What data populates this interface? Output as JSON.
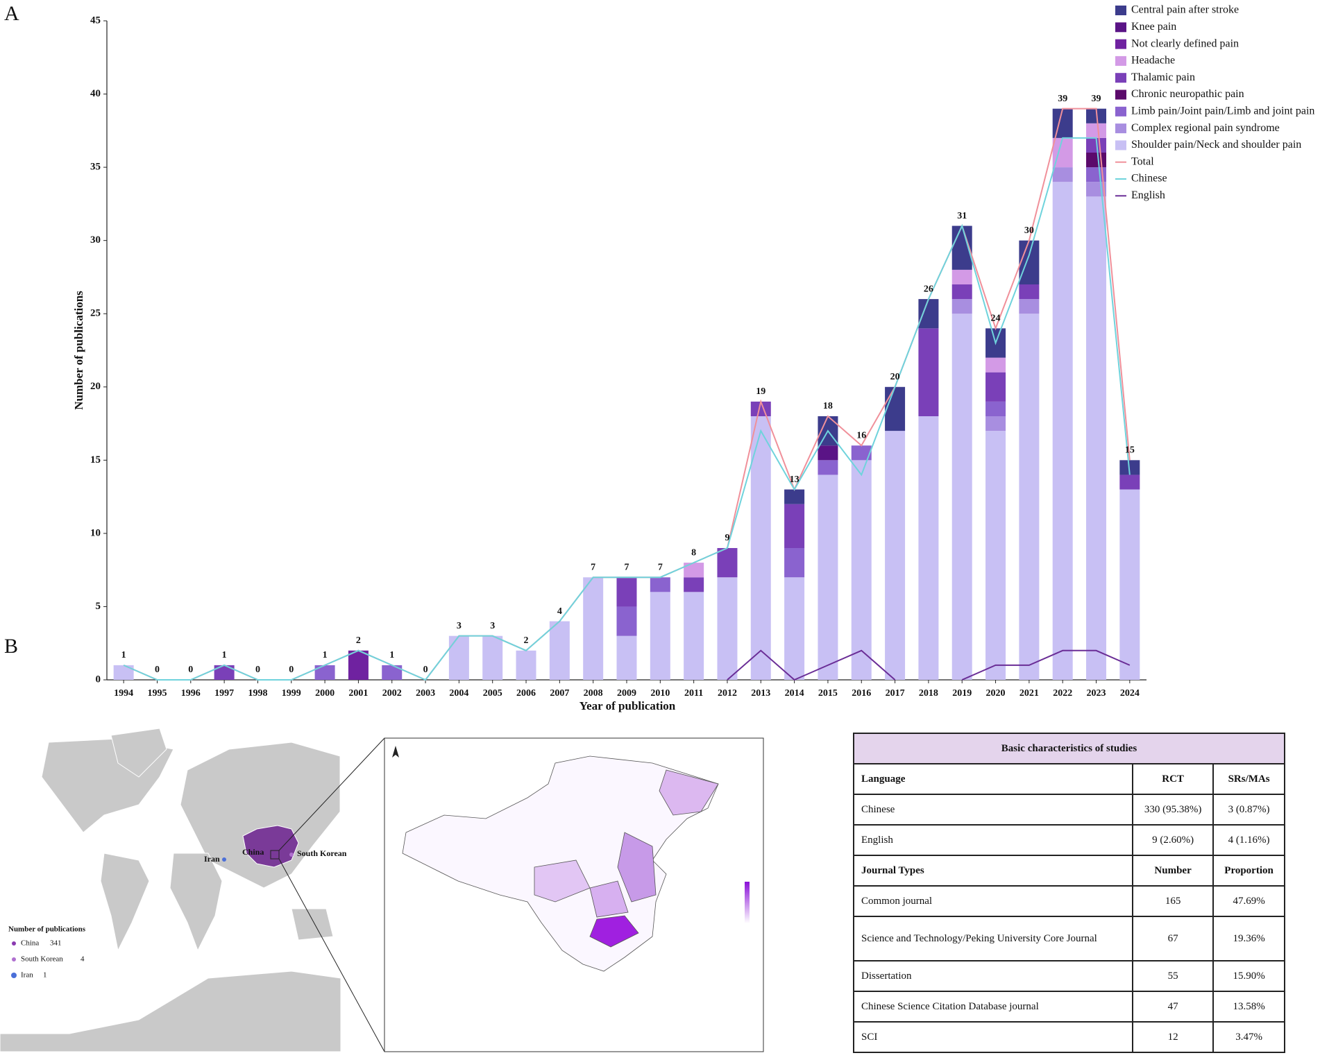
{
  "panel_labels": [
    "A",
    "B"
  ],
  "chart_data": {
    "type": "bar",
    "stacked": true,
    "xlabel": "Year of publication",
    "ylabel": "Number of publications",
    "categories": [
      "1994",
      "1995",
      "1996",
      "1997",
      "1998",
      "1999",
      "2000",
      "2001",
      "2002",
      "2003",
      "2004",
      "2005",
      "2006",
      "2007",
      "2008",
      "2009",
      "2010",
      "2011",
      "2012",
      "2013",
      "2014",
      "2015",
      "2016",
      "2017",
      "2018",
      "2019",
      "2020",
      "2021",
      "2022",
      "2023",
      "2024"
    ],
    "ylim": [
      0,
      45
    ],
    "yticks": [
      0,
      5,
      10,
      15,
      20,
      25,
      30,
      35,
      40,
      45
    ],
    "grid": false,
    "legend": "top-right",
    "series": [
      {
        "name": "Central pain after stroke",
        "color": "#3c3c8c",
        "values": [
          0,
          0,
          0,
          0,
          0,
          0,
          0,
          0,
          0,
          0,
          0,
          0,
          0,
          0,
          0,
          0,
          0,
          0,
          0,
          0,
          1,
          2,
          0,
          3,
          2,
          3,
          2,
          3,
          2,
          1,
          1
        ]
      },
      {
        "name": "Knee pain",
        "color": "#5a1486",
        "values": [
          0,
          0,
          0,
          0,
          0,
          0,
          0,
          0,
          0,
          0,
          0,
          0,
          0,
          0,
          0,
          0,
          0,
          0,
          0,
          0,
          0,
          1,
          0,
          0,
          0,
          0,
          0,
          0,
          0,
          0,
          0
        ]
      },
      {
        "name": "Not clearly defined pain",
        "color": "#6f22a0",
        "values": [
          0,
          0,
          0,
          0,
          0,
          0,
          0,
          2,
          0,
          0,
          0,
          0,
          0,
          0,
          0,
          0,
          0,
          0,
          0,
          0,
          0,
          0,
          0,
          0,
          0,
          0,
          0,
          0,
          0,
          0,
          0
        ]
      },
      {
        "name": "Headache",
        "color": "#d39ae6",
        "values": [
          0,
          0,
          0,
          0,
          0,
          0,
          0,
          0,
          0,
          0,
          0,
          0,
          0,
          0,
          0,
          0,
          0,
          1,
          0,
          0,
          0,
          0,
          0,
          0,
          0,
          1,
          1,
          0,
          2,
          1,
          0
        ]
      },
      {
        "name": "Thalamic pain",
        "color": "#7a40b8",
        "values": [
          0,
          0,
          0,
          1,
          0,
          0,
          0,
          0,
          0,
          0,
          0,
          0,
          0,
          0,
          0,
          2,
          0,
          1,
          2,
          1,
          3,
          0,
          0,
          0,
          6,
          1,
          2,
          1,
          0,
          1,
          1
        ]
      },
      {
        "name": "Chronic neuropathic pain",
        "color": "#5b0a6b",
        "values": [
          0,
          0,
          0,
          0,
          0,
          0,
          0,
          0,
          0,
          0,
          0,
          0,
          0,
          0,
          0,
          0,
          0,
          0,
          0,
          0,
          0,
          0,
          0,
          0,
          0,
          0,
          0,
          0,
          0,
          1,
          0
        ]
      },
      {
        "name": "Limb pain/Joint pain/Limb and joint pain",
        "color": "#8a63cf",
        "values": [
          0,
          0,
          0,
          0,
          0,
          0,
          1,
          0,
          1,
          0,
          0,
          0,
          0,
          0,
          0,
          2,
          1,
          0,
          0,
          0,
          2,
          1,
          1,
          0,
          0,
          0,
          1,
          0,
          0,
          1,
          0
        ]
      },
      {
        "name": "Complex regional pain syndrome",
        "color": "#a88ee0",
        "values": [
          0,
          0,
          0,
          0,
          0,
          0,
          0,
          0,
          0,
          0,
          0,
          0,
          0,
          0,
          0,
          0,
          0,
          0,
          0,
          0,
          0,
          0,
          0,
          0,
          0,
          1,
          1,
          1,
          1,
          1,
          0
        ]
      },
      {
        "name": "Shoulder pain/Neck and shoulder pain",
        "color": "#c8c0f4",
        "values": [
          1,
          0,
          0,
          0,
          0,
          0,
          0,
          0,
          0,
          0,
          3,
          3,
          2,
          4,
          7,
          3,
          6,
          6,
          7,
          18,
          7,
          14,
          15,
          17,
          18,
          25,
          17,
          25,
          34,
          33,
          13
        ]
      },
      {
        "name": "Total",
        "type": "line",
        "data_labels": true,
        "color": "#f0909a",
        "values": [
          1,
          0,
          0,
          1,
          0,
          0,
          1,
          2,
          1,
          0,
          3,
          3,
          2,
          4,
          7,
          7,
          7,
          8,
          9,
          19,
          13,
          18,
          16,
          20,
          26,
          31,
          24,
          30,
          39,
          39,
          15
        ]
      },
      {
        "name": "Chinese",
        "type": "line",
        "color": "#6fd3dc",
        "values": [
          1,
          0,
          0,
          1,
          0,
          0,
          1,
          2,
          1,
          0,
          3,
          3,
          2,
          4,
          7,
          7,
          7,
          8,
          9,
          17,
          13,
          17,
          14,
          20,
          26,
          31,
          23,
          29,
          37,
          37,
          14
        ]
      },
      {
        "name": "English",
        "type": "line",
        "color": "#6a2d96",
        "values": [
          null,
          null,
          null,
          null,
          null,
          null,
          null,
          null,
          null,
          null,
          null,
          null,
          null,
          null,
          null,
          null,
          null,
          null,
          0,
          2,
          0,
          1,
          2,
          0,
          null,
          0,
          1,
          1,
          2,
          2,
          1
        ]
      }
    ]
  },
  "map": {
    "labels": [
      "Iran",
      "China",
      "South Korean"
    ],
    "legend_title": "Number of publications",
    "legend": [
      {
        "name": "China",
        "value": 341
      },
      {
        "name": "South Korean",
        "value": 4
      },
      {
        "name": "Iran",
        "value": 1
      }
    ]
  },
  "table": {
    "title": "Basic characteristics of studies",
    "rows": [
      [
        "Language",
        "RCT",
        "SRs/MAs"
      ],
      [
        "Chinese",
        "330 (95.38%)",
        "3 (0.87%)"
      ],
      [
        "English",
        "9 (2.60%)",
        "4 (1.16%)"
      ],
      [
        "Journal Types",
        "Number",
        "Proportion"
      ],
      [
        "Common journal",
        "165",
        "47.69%"
      ],
      [
        "Science and Technology/Peking University Core Journal",
        "67",
        "19.36%"
      ],
      [
        "Dissertation",
        "55",
        "15.90%"
      ],
      [
        "Chinese Science Citation Database journal",
        "47",
        "13.58%"
      ],
      [
        "SCI",
        "12",
        "3.47%"
      ]
    ]
  }
}
